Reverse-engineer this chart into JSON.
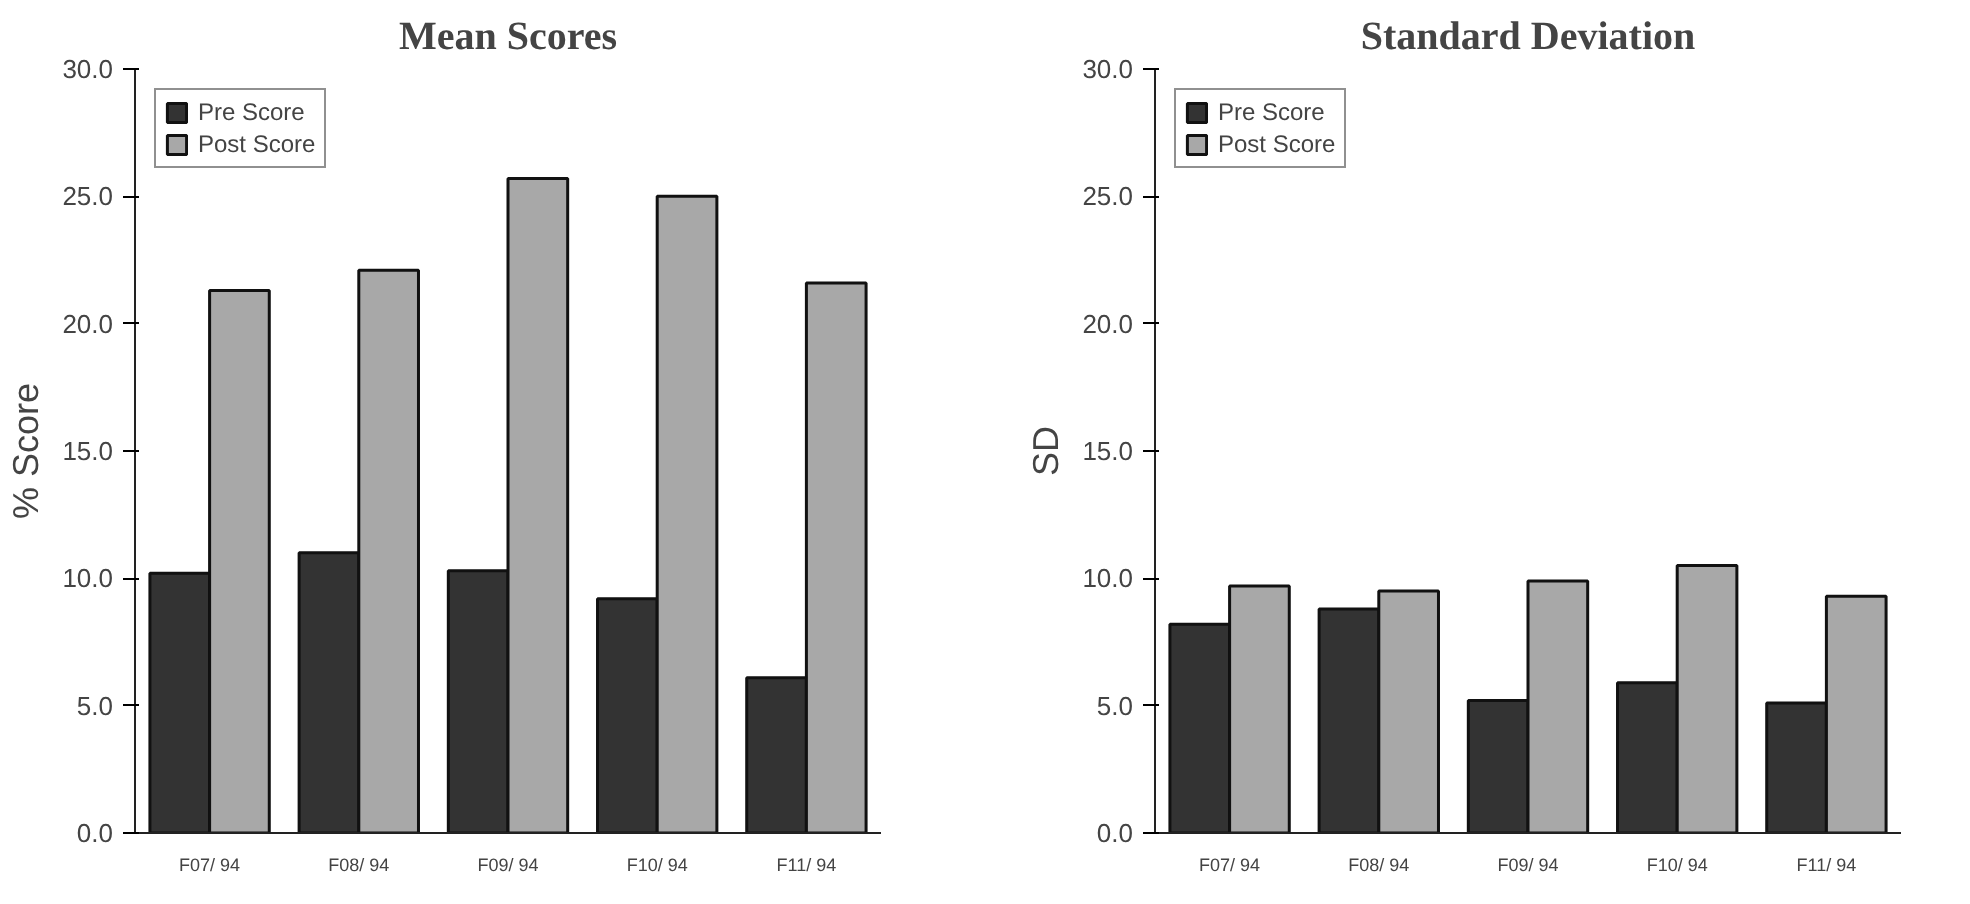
{
  "chart_data": [
    {
      "type": "bar",
      "title": "Mean Scores",
      "ylabel": "% Score",
      "categories": [
        "F07/ 94",
        "F08/ 94",
        "F09/ 94",
        "F10/ 94",
        "F11/ 94"
      ],
      "series": [
        {
          "name": "Pre Score",
          "color": "#333333",
          "values": [
            10.2,
            11.0,
            10.3,
            9.2,
            6.1
          ]
        },
        {
          "name": "Post Score",
          "color": "#a8a8a8",
          "values": [
            21.3,
            22.1,
            25.7,
            25.0,
            21.6
          ]
        }
      ],
      "ylim": [
        0,
        30
      ],
      "yticks": [
        {
          "value": 0,
          "label": "0.0"
        },
        {
          "value": 5,
          "label": "5.0"
        },
        {
          "value": 10,
          "label": "10.0"
        },
        {
          "value": 15,
          "label": "15.0"
        },
        {
          "value": 20,
          "label": "20.0"
        },
        {
          "value": 25,
          "label": "25.0"
        },
        {
          "value": 30,
          "label": "30.0"
        }
      ],
      "legend": "top left"
    },
    {
      "type": "bar",
      "title": "Standard Deviation",
      "ylabel": "SD",
      "categories": [
        "F07/ 94",
        "F08/ 94",
        "F09/ 94",
        "F10/ 94",
        "F11/ 94"
      ],
      "series": [
        {
          "name": "Pre Score",
          "color": "#333333",
          "values": [
            8.2,
            8.8,
            5.2,
            5.9,
            5.1
          ]
        },
        {
          "name": "Post Score",
          "color": "#a8a8a8",
          "values": [
            9.7,
            9.5,
            9.9,
            10.5,
            9.3
          ]
        }
      ],
      "ylim": [
        0,
        30
      ],
      "yticks": [
        {
          "value": 0,
          "label": "0.0"
        },
        {
          "value": 5,
          "label": "5.0"
        },
        {
          "value": 10,
          "label": "10.0"
        },
        {
          "value": 15,
          "label": "15.0"
        },
        {
          "value": 20,
          "label": "20.0"
        },
        {
          "value": 25,
          "label": "25.0"
        },
        {
          "value": 30,
          "label": "30.0"
        }
      ],
      "legend": "top left"
    }
  ]
}
